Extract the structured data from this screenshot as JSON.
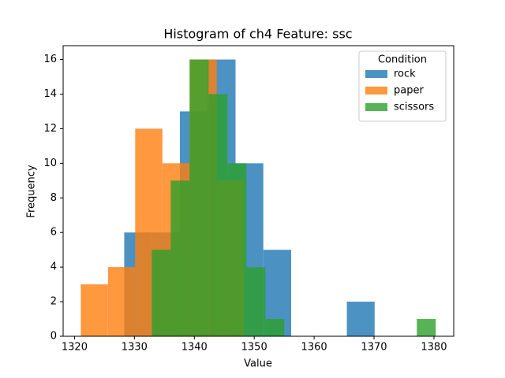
{
  "chart_data": {
    "type": "histogram",
    "title": "Histogram of ch4 Feature: ssc",
    "x_label": "Value",
    "y_label": "Frequency",
    "xlim": [
      1318.1,
      1383.3
    ],
    "xticks": [
      1320,
      1330,
      1340,
      1350,
      1360,
      1370,
      1380
    ],
    "ylim": [
      0,
      16.8
    ],
    "yticks": [
      0,
      2,
      4,
      6,
      8,
      10,
      12,
      14,
      16
    ],
    "legend_title": "Condition",
    "legend": "upper right",
    "opacity": 0.8,
    "series": [
      {
        "name": "rock",
        "color": "#1f77b4",
        "bins": [
          1328.3,
          1332.94,
          1337.59,
          1342.23,
          1346.88,
          1351.52,
          1356.17,
          1360.81,
          1365.46,
          1370.1
        ],
        "values": [
          6,
          6,
          13,
          16,
          10,
          5,
          0,
          0,
          2
        ]
      },
      {
        "name": "paper",
        "color": "#ff7f0e",
        "bins": [
          1321.05,
          1325.59,
          1330.13,
          1334.67,
          1339.21,
          1343.75,
          1348.29
        ],
        "values": [
          3,
          4,
          12,
          10,
          16,
          9
        ]
      },
      {
        "name": "scissors",
        "color": "#2ca02c",
        "bins": [
          1332.9,
          1336.06,
          1339.22,
          1342.38,
          1345.54,
          1348.7,
          1351.86,
          1355.02,
          1358.18,
          1361.34,
          1364.5,
          1367.66,
          1370.82,
          1373.98,
          1377.14,
          1380.3
        ],
        "values": [
          5,
          9,
          16,
          14,
          10,
          4,
          1,
          0,
          0,
          0,
          0,
          0,
          0,
          0,
          1
        ]
      }
    ]
  }
}
